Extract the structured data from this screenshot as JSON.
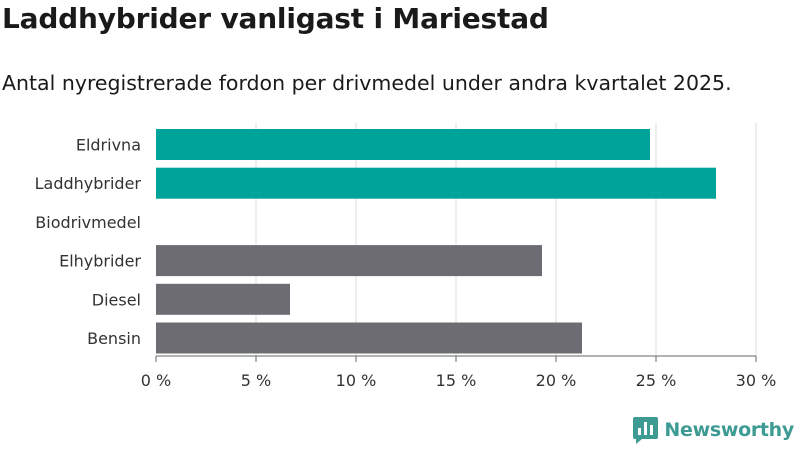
{
  "header": {
    "title": "Laddhybrider vanligast i Mariestad",
    "subtitle": "Antal nyregistrerade fordon per drivmedel under andra kvartalet 2025."
  },
  "logo": {
    "text": "Newsworthy",
    "color": "#3d9b93"
  },
  "colors": {
    "highlight": "#00a39a",
    "default": "#6d6c72",
    "grid": "#dddddd",
    "axis": "#666666"
  },
  "chart_data": {
    "type": "bar",
    "orientation": "horizontal",
    "title": "Laddhybrider vanligast i Mariestad",
    "subtitle": "Antal nyregistrerade fordon per drivmedel under andra kvartalet 2025.",
    "categories": [
      "Eldrivna",
      "Laddhybrider",
      "Biodrivmedel",
      "Elhybrider",
      "Diesel",
      "Bensin"
    ],
    "values": [
      24.7,
      28.0,
      0,
      19.3,
      6.7,
      21.3
    ],
    "highlighted": [
      true,
      true,
      false,
      false,
      false,
      false
    ],
    "unit": "%",
    "xlim": [
      0,
      30
    ],
    "ticks": [
      0,
      5,
      10,
      15,
      20,
      25,
      30
    ],
    "tick_labels": [
      "0 %",
      "5 %",
      "10 %",
      "15 %",
      "20 %",
      "25 %",
      "30 %"
    ],
    "xlabel": "",
    "ylabel": "",
    "grid": true,
    "legend": false
  }
}
